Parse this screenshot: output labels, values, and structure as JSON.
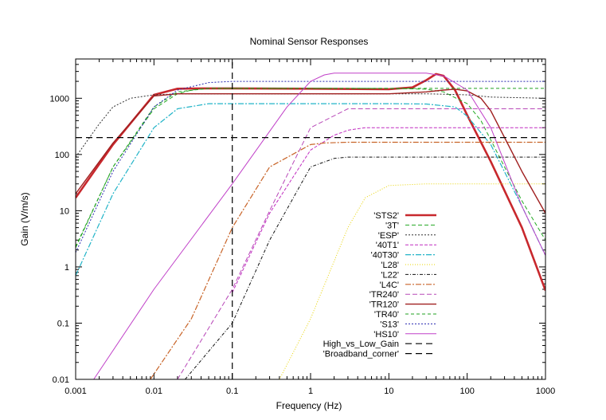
{
  "chart_data": {
    "type": "line",
    "title": "Nominal Sensor Responses",
    "xlabel": "Frequency (Hz)",
    "ylabel": "Gain (V/m/s)",
    "xscale": "log",
    "yscale": "log",
    "xlim": [
      0.001,
      1000
    ],
    "ylim": [
      0.01,
      5000
    ],
    "x_ticks": [
      0.001,
      0.01,
      0.1,
      1,
      10,
      100,
      1000
    ],
    "x_tick_labels": [
      "0.001",
      "0.01",
      "0.1",
      "1",
      "10",
      "100",
      "1000"
    ],
    "y_ticks": [
      0.01,
      0.1,
      1,
      10,
      100,
      1000
    ],
    "y_tick_labels": [
      "0.01",
      "0.1",
      "1",
      "10",
      "100",
      "1000"
    ],
    "grid": false,
    "legend_position": "center-right",
    "series": [
      {
        "name": "'STS2'",
        "color": "#c8282d",
        "dash": "",
        "width": 2.6,
        "x": [
          0.001,
          0.003,
          0.01,
          0.02,
          0.05,
          0.1,
          1,
          10,
          20,
          30,
          40,
          50,
          70,
          100,
          200,
          500,
          1000
        ],
        "y": [
          17,
          150,
          1150,
          1480,
          1500,
          1500,
          1480,
          1450,
          1560,
          2100,
          2700,
          2500,
          1400,
          500,
          75,
          5,
          0.38
        ]
      },
      {
        "name": "'3T'",
        "color": "#22a822",
        "dash": "5,3",
        "width": 1,
        "x": [
          0.001,
          0.003,
          0.01,
          0.02,
          0.03,
          0.05,
          0.1,
          1,
          10,
          30,
          50,
          100,
          150,
          300,
          500,
          1000
        ],
        "y": [
          2.2,
          60,
          650,
          1200,
          1400,
          1500,
          1500,
          1500,
          1500,
          1450,
          1300,
          800,
          400,
          60,
          15,
          3
        ]
      },
      {
        "name": "'ESP'",
        "color": "#303030",
        "dash": "2,2",
        "width": 1,
        "x": [
          0.001,
          0.002,
          0.003,
          0.005,
          0.01,
          0.02,
          0.05,
          0.1,
          1,
          10,
          30,
          100,
          200,
          1000
        ],
        "y": [
          90,
          350,
          700,
          1000,
          1150,
          1200,
          1200,
          1200,
          1200,
          1200,
          1200,
          1150,
          1050,
          1000
        ]
      },
      {
        "name": "'40T1'",
        "color": "#c02cc0",
        "dash": "4,2",
        "width": 1,
        "x": [
          0.1,
          0.3,
          1,
          2,
          3,
          5,
          10,
          30,
          100,
          300,
          1000
        ],
        "y": [
          0.35,
          9,
          120,
          220,
          270,
          300,
          300,
          300,
          300,
          300,
          300
        ]
      },
      {
        "name": "'40T30'",
        "color": "#22b4c8",
        "dash": "7,2,2,2",
        "width": 1.2,
        "x": [
          0.001,
          0.003,
          0.01,
          0.02,
          0.05,
          0.1,
          1,
          10,
          30,
          70,
          100,
          200,
          500,
          1000
        ],
        "y": [
          0.7,
          20,
          300,
          650,
          800,
          800,
          800,
          800,
          790,
          700,
          480,
          150,
          12,
          1.6
        ]
      },
      {
        "name": "'L28'",
        "color": "#e8d400",
        "dash": "1,2",
        "width": 1,
        "x": [
          0.4,
          1,
          3,
          5,
          10,
          30,
          100,
          1000
        ],
        "y": [
          0.01,
          0.12,
          5,
          17,
          28,
          30,
          30,
          30
        ]
      },
      {
        "name": "'L22'",
        "color": "#101010",
        "dash": "4,2,1,2",
        "width": 1,
        "x": [
          0.025,
          0.1,
          0.3,
          1,
          2,
          3,
          5,
          10,
          100,
          1000
        ],
        "y": [
          0.01,
          0.1,
          3,
          60,
          85,
          90,
          90,
          90,
          90,
          90
        ]
      },
      {
        "name": "'L4C'",
        "color": "#c86428",
        "dash": "7,2,2,2",
        "width": 1.2,
        "x": [
          0.009,
          0.03,
          0.1,
          0.3,
          1,
          1.5,
          3,
          10,
          100,
          1000
        ],
        "y": [
          0.01,
          0.12,
          5,
          60,
          150,
          160,
          165,
          165,
          165,
          165
        ]
      },
      {
        "name": "'TR240'",
        "color": "#b848b8",
        "dash": "6,3",
        "width": 1,
        "x": [
          0.02,
          0.1,
          0.3,
          1,
          3,
          10,
          30,
          100,
          300,
          1000
        ],
        "y": [
          0.01,
          0.4,
          10,
          300,
          650,
          650,
          650,
          650,
          650,
          650
        ]
      },
      {
        "name": "'TR120'",
        "color": "#a02020",
        "dash": "",
        "width": 1.4,
        "x": [
          0.001,
          0.003,
          0.01,
          0.02,
          0.05,
          0.1,
          1,
          10,
          30,
          50,
          70,
          100,
          150,
          200,
          300,
          500,
          1000
        ],
        "y": [
          20,
          160,
          1100,
          1200,
          1200,
          1200,
          1200,
          1200,
          1300,
          1400,
          1450,
          1350,
          1000,
          600,
          200,
          50,
          9
        ]
      },
      {
        "name": "'TR40'",
        "color": "#20a020",
        "dash": "4,3",
        "width": 1,
        "x": [
          0.001,
          0.003,
          0.01,
          0.02,
          0.05,
          0.1,
          1,
          10,
          100,
          300,
          1000
        ],
        "y": [
          2.3,
          60,
          700,
          1300,
          1500,
          1500,
          1500,
          1500,
          1500,
          1500,
          1500
        ]
      },
      {
        "name": "'S13'",
        "color": "#2828b0",
        "dash": "2,2",
        "width": 1,
        "x": [
          0.001,
          0.003,
          0.01,
          0.02,
          0.05,
          0.1,
          1,
          10,
          30,
          50,
          80,
          150,
          300,
          1000
        ],
        "y": [
          1.8,
          50,
          700,
          1400,
          1900,
          2000,
          2000,
          2000,
          2000,
          2000,
          2000,
          2000,
          2000,
          2000
        ]
      },
      {
        "name": "'HS10'",
        "color": "#c040c8",
        "dash": "",
        "width": 1,
        "x": [
          0.0017,
          0.01,
          0.1,
          0.5,
          1,
          1.5,
          2,
          3,
          10,
          30,
          50,
          100,
          200,
          500,
          1000
        ],
        "y": [
          0.01,
          0.4,
          30,
          700,
          2000,
          2600,
          2800,
          2800,
          2800,
          2800,
          2500,
          1400,
          300,
          12,
          1.6
        ]
      },
      {
        "name": "High_vs_Low_Gain",
        "color": "#000000",
        "dash": "8,5",
        "width": 1.2,
        "x": [
          0.001,
          1000
        ],
        "y": [
          200,
          200
        ]
      },
      {
        "name": "'Broadband_corner'",
        "color": "#000000",
        "dash": "8,5",
        "width": 1.2,
        "x": [
          0.1,
          0.1
        ],
        "y": [
          0.01,
          5000
        ]
      }
    ]
  }
}
